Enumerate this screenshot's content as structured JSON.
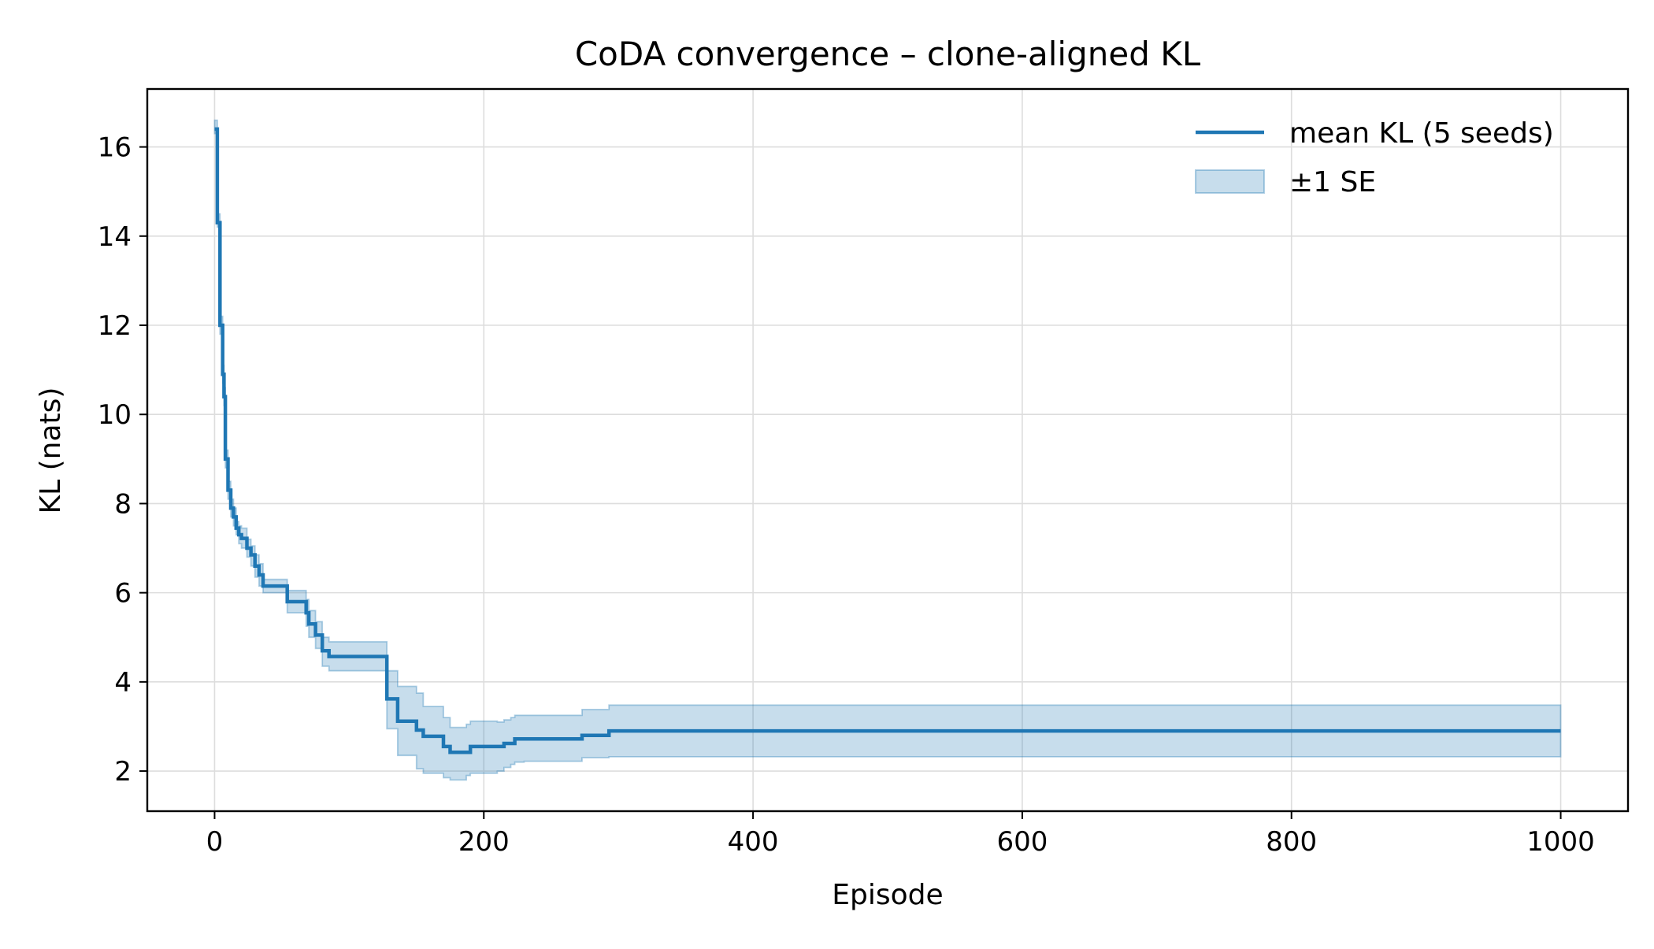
{
  "chart_data": {
    "type": "line",
    "title": "CoDA convergence – clone-aligned KL",
    "xlabel": "Episode",
    "ylabel": "KL (nats)",
    "xlim": [
      -50,
      1050
    ],
    "ylim": [
      1.1,
      17.3
    ],
    "xticks": [
      0,
      200,
      400,
      600,
      800,
      1000
    ],
    "yticks": [
      2,
      4,
      6,
      8,
      10,
      12,
      14,
      16
    ],
    "xtick_labels": [
      "0",
      "200",
      "400",
      "600",
      "800",
      "1000"
    ],
    "ytick_labels": [
      "2",
      "4",
      "6",
      "8",
      "10",
      "12",
      "14",
      "16"
    ],
    "grid": true,
    "legend_position": "top-right",
    "legend": {
      "line_label": "mean KL (5 seeds)",
      "band_label": "±1 SE"
    },
    "colors": {
      "line": "#1f77b4",
      "band": "#1f77b4",
      "grid": "#dddddd"
    },
    "series": [
      {
        "name": "mean KL (5 seeds)",
        "x": [
          0,
          2,
          4,
          6,
          7,
          8,
          10,
          12,
          14,
          16,
          18,
          20,
          22,
          24,
          27,
          30,
          33,
          36,
          40,
          45,
          50,
          54,
          58,
          63,
          68,
          70,
          75,
          80,
          85,
          90,
          100,
          110,
          120,
          126,
          128,
          133,
          136,
          140,
          150,
          155,
          160,
          170,
          175,
          180,
          187,
          190,
          195,
          200,
          210,
          215,
          220,
          223,
          230,
          250,
          270,
          273,
          290,
          293,
          400,
          600,
          800,
          1000
        ],
        "y": [
          16.4,
          14.3,
          12.0,
          10.9,
          10.4,
          9.0,
          8.3,
          7.9,
          7.7,
          7.45,
          7.3,
          7.22,
          7.22,
          7.0,
          6.85,
          6.6,
          6.4,
          6.15,
          6.15,
          6.15,
          6.15,
          5.8,
          5.8,
          5.8,
          5.55,
          5.3,
          5.05,
          4.7,
          4.57,
          4.57,
          4.57,
          4.57,
          4.57,
          4.57,
          3.62,
          3.62,
          3.12,
          3.12,
          2.92,
          2.78,
          2.78,
          2.55,
          2.42,
          2.42,
          2.42,
          2.55,
          2.55,
          2.55,
          2.55,
          2.62,
          2.62,
          2.72,
          2.72,
          2.72,
          2.72,
          2.8,
          2.8,
          2.9,
          2.9,
          2.9,
          2.9,
          2.9
        ],
        "se_lower": [
          16.3,
          14.2,
          11.8,
          10.7,
          10.2,
          8.8,
          8.1,
          7.7,
          7.5,
          7.3,
          7.1,
          7.0,
          7.0,
          6.8,
          6.6,
          6.35,
          6.15,
          6.0,
          6.0,
          6.0,
          6.0,
          5.55,
          5.55,
          5.55,
          5.25,
          5.0,
          4.75,
          4.35,
          4.25,
          4.25,
          4.25,
          4.25,
          4.25,
          4.25,
          2.95,
          2.95,
          2.35,
          2.35,
          2.05,
          1.95,
          1.95,
          1.85,
          1.8,
          1.8,
          1.9,
          1.95,
          1.95,
          1.95,
          2.0,
          2.08,
          2.15,
          2.2,
          2.22,
          2.22,
          2.22,
          2.3,
          2.3,
          2.32,
          2.32,
          2.32,
          2.32,
          2.32
        ],
        "se_upper": [
          16.6,
          14.5,
          12.2,
          11.1,
          10.6,
          9.2,
          8.5,
          8.1,
          7.9,
          7.6,
          7.5,
          7.45,
          7.45,
          7.2,
          7.05,
          6.85,
          6.65,
          6.3,
          6.3,
          6.3,
          6.3,
          6.05,
          6.05,
          6.05,
          5.85,
          5.6,
          5.35,
          5.0,
          4.9,
          4.9,
          4.9,
          4.9,
          4.9,
          4.9,
          4.25,
          4.25,
          3.9,
          3.9,
          3.75,
          3.45,
          3.45,
          3.2,
          2.98,
          2.98,
          3.05,
          3.12,
          3.12,
          3.12,
          3.1,
          3.15,
          3.2,
          3.25,
          3.25,
          3.25,
          3.25,
          3.38,
          3.38,
          3.48,
          3.48,
          3.48,
          3.48,
          3.48
        ]
      }
    ]
  }
}
